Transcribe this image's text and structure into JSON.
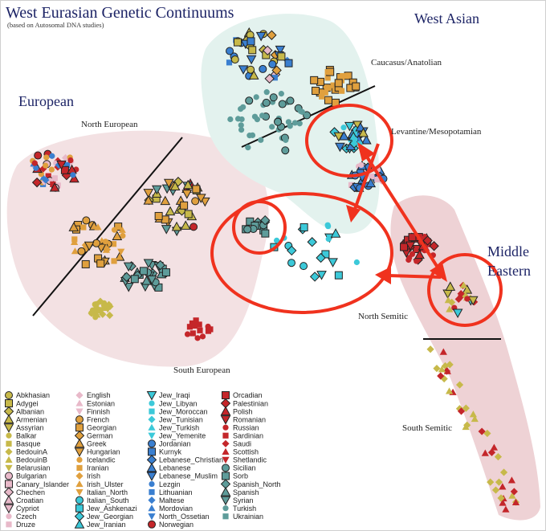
{
  "title": "West Eurasian Genetic Continuums",
  "subtitle": "(based on Autosomal DNA studies)",
  "regions": {
    "european": "European",
    "west_asian": "West Asian",
    "middle_eastern_line1": "Middle",
    "middle_eastern_line2": "Eastern"
  },
  "sublabels": {
    "north_european": "North European",
    "south_european": "South European",
    "caucasus": "Caucasus/Anatolian",
    "levantine": "Levantine/Mesopotamian",
    "north_semitic": "North Semitic",
    "south_semitic": "South Semitic"
  },
  "colors": {
    "title": "#1d2466",
    "european_zone": "#f3e1e3",
    "west_asian_zone": "#e3f2ee",
    "middle_eastern_zone": "#eed2d5",
    "annotation": "#f0321e",
    "groups": [
      "#c7b94a",
      "#e8b9c9",
      "#e0a03e",
      "#3cc9d9",
      "#3a7fd0",
      "#c4262a",
      "#5e9c9a"
    ]
  },
  "legend": [
    "Abkhasian",
    "Adygei",
    "Albanian",
    "Armenian",
    "Assyrian",
    "Balkar",
    "Basque",
    "BedouinA",
    "BedouinB",
    "Belarusian",
    "Bulgarian",
    "Canary_Islander",
    "Chechen",
    "Croatian",
    "Cypriot",
    "Czech",
    "Druze",
    "English",
    "Estonian",
    "Finnish",
    "French",
    "Georgian",
    "German",
    "Greek",
    "Hungarian",
    "Icelandic",
    "Iranian",
    "Irish",
    "Irish_Ulster",
    "Italian_North",
    "Italian_South",
    "Jew_Ashkenazi",
    "Jew_Georgian",
    "Jew_Iranian",
    "Jew_Iraqi",
    "Jew_Libyan",
    "Jew_Moroccan",
    "Jew_Tunisian",
    "Jew_Turkish",
    "Jew_Yemenite",
    "Jordanian",
    "Kurnyk",
    "Lebanese_Christian",
    "Lebanese",
    "Lebanese_Muslim",
    "Lezgin",
    "Lithuanian",
    "Maltese",
    "Mordovian",
    "North_Ossetian",
    "Norwegian",
    "Orcadian",
    "Palestinian",
    "Polish",
    "Romanian",
    "Russian",
    "Sardinian",
    "Saudi",
    "Scottish",
    "Shetlandic",
    "Sicilian",
    "Sorb",
    "Spanish_North",
    "Spanish",
    "Syrian",
    "Turkish",
    "Ukrainian"
  ]
}
